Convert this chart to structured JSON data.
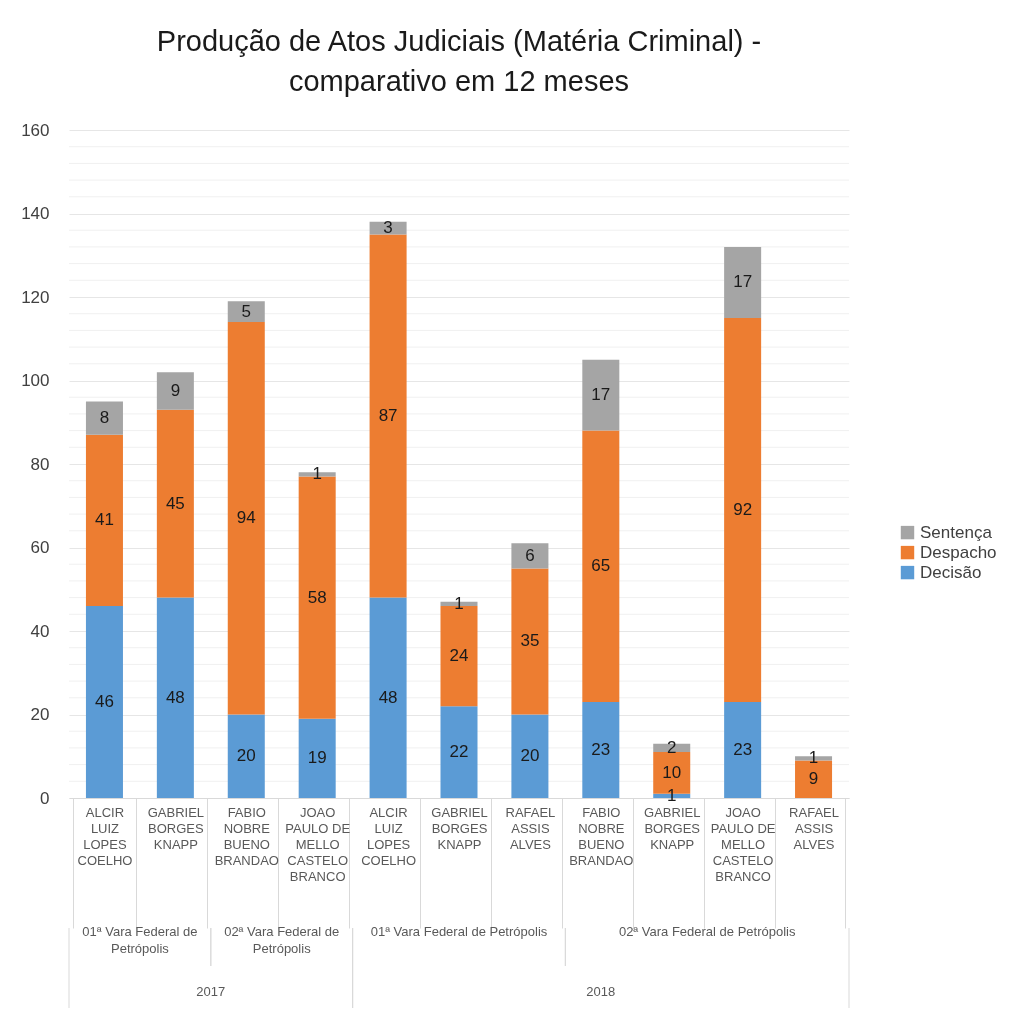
{
  "chart_data": {
    "type": "bar",
    "stacked": true,
    "title": "Produção de Atos Judiciais (Matéria Criminal) - comparativo em 12 meses",
    "categories": [
      "ALCIR LUIZ LOPES COELHO",
      "GABRIEL BORGES KNAPP",
      "FABIO NOBRE BUENO BRANDAO",
      "JOAO PAULO DE MELLO CASTELO BRANCO",
      "ALCIR LUIZ LOPES COELHO",
      "GABRIEL BORGES KNAPP",
      "RAFAEL ASSIS ALVES",
      "FABIO NOBRE BUENO BRANDAO",
      "GABRIEL BORGES KNAPP",
      "JOAO PAULO DE MELLO CASTELO BRANCO",
      "RAFAEL ASSIS ALVES"
    ],
    "series": [
      {
        "name": "Decisão",
        "color": "#5b9bd5",
        "values": [
          46,
          48,
          20,
          19,
          48,
          22,
          20,
          23,
          1,
          23,
          0
        ],
        "value_labels": [
          "46",
          "48",
          "20",
          "19",
          "48",
          "22",
          "20",
          "23",
          "1",
          "23",
          null
        ]
      },
      {
        "name": "Despacho",
        "color": "#ed7d31",
        "values": [
          41,
          45,
          94,
          58,
          87,
          24,
          35,
          65,
          10,
          92,
          9
        ],
        "value_labels": [
          "41",
          "45",
          "94",
          "58",
          "87",
          "24",
          "35",
          "65",
          "10",
          "92",
          "9"
        ]
      },
      {
        "name": "Sentença",
        "color": "#a5a5a5",
        "values": [
          8,
          9,
          5,
          1,
          3,
          1,
          6,
          17,
          2,
          17,
          1
        ],
        "value_labels": [
          "8",
          "9",
          "5",
          "1",
          "3",
          "1",
          "6",
          "17",
          "2",
          "17",
          "1"
        ]
      }
    ],
    "ylim": [
      0,
      160
    ],
    "yticks": [
      0,
      {
        "value": 4,
        "label": null
      },
      {
        "value": 8,
        "label": null
      },
      {
        "value": 12,
        "label": null
      },
      {
        "value": 16,
        "label": null
      },
      20,
      {
        "value": 24,
        "label": null
      },
      {
        "value": 28,
        "label": null
      },
      {
        "value": 32,
        "label": null
      },
      {
        "value": 36,
        "label": null
      },
      40,
      {
        "value": 44,
        "label": null
      },
      {
        "value": 48,
        "label": null
      },
      {
        "value": 52,
        "label": null
      },
      {
        "value": 56,
        "label": null
      },
      60,
      {
        "value": 64,
        "label": null
      },
      {
        "value": 68,
        "label": null
      },
      {
        "value": 72,
        "label": null
      },
      {
        "value": 76,
        "label": null
      },
      80,
      {
        "value": 84,
        "label": null
      },
      {
        "value": 88,
        "label": null
      },
      {
        "value": 92,
        "label": null
      },
      {
        "value": 96,
        "label": null
      },
      100,
      {
        "value": 104,
        "label": null
      },
      {
        "value": 108,
        "label": null
      },
      {
        "value": 112,
        "label": null
      },
      {
        "value": 116,
        "label": null
      },
      120,
      {
        "value": 124,
        "label": null
      },
      {
        "value": 128,
        "label": null
      },
      {
        "value": 132,
        "label": null
      },
      {
        "value": 136,
        "label": null
      },
      140,
      {
        "value": 144,
        "label": null
      },
      {
        "value": 148,
        "label": null
      },
      {
        "value": 152,
        "label": null
      },
      {
        "value": 156,
        "label": null
      },
      160
    ],
    "grid": "y",
    "legend": "right",
    "annotations": [
      "01ª Vara Federal de Petrópolis",
      "02ª Vara Federal de Petrópolis",
      "01ª Vara Federal de Petrópolis",
      "02ª Vara Federal de Petrópolis",
      "2017",
      "2018"
    ]
  }
}
